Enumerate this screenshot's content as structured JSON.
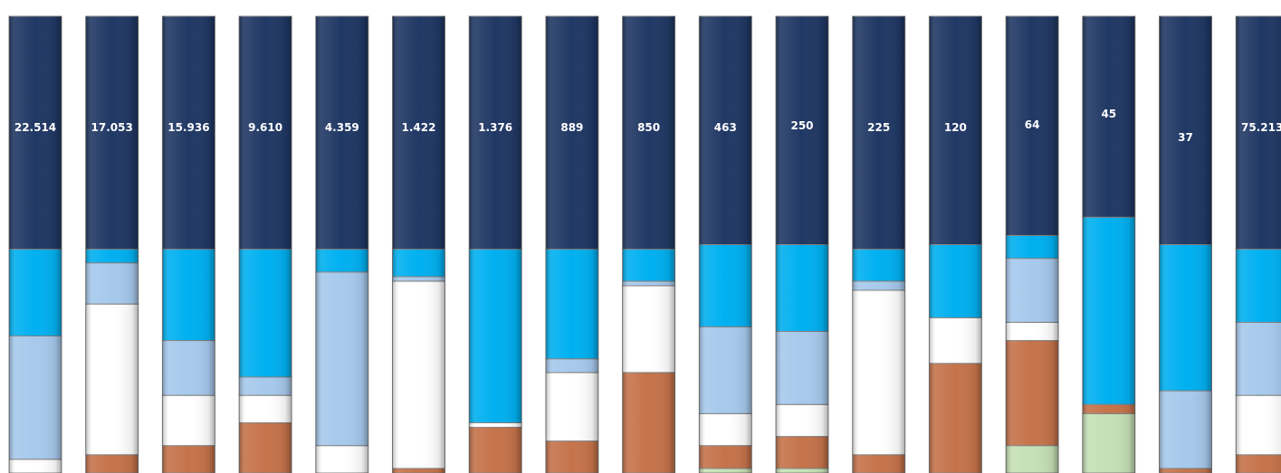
{
  "chart_data": {
    "type": "bar",
    "stacked": true,
    "normalized": true,
    "title": "",
    "xlabel": "",
    "ylabel": "",
    "ylim": [
      0,
      1
    ],
    "grid": false,
    "legend": "none",
    "segment_colors": [
      "#c5e0b4",
      "#c5734a",
      "#ffffff",
      "#a6c9ec",
      "#00b0f0",
      "#203864"
    ],
    "bars": [
      {
        "total_label": "22.514",
        "shares": [
          0,
          0,
          0.03,
          0.27,
          0.19,
          0.51
        ]
      },
      {
        "total_label": "17.053",
        "shares": [
          0,
          0.04,
          0.33,
          0.09,
          0.03,
          0.51
        ]
      },
      {
        "total_label": "15.936",
        "shares": [
          0,
          0.06,
          0.11,
          0.12,
          0.2,
          0.51
        ]
      },
      {
        "total_label": "9.610",
        "shares": [
          0,
          0.11,
          0.06,
          0.04,
          0.28,
          0.51
        ]
      },
      {
        "total_label": "4.359",
        "shares": [
          0,
          0,
          0.06,
          0.38,
          0.05,
          0.51
        ]
      },
      {
        "total_label": "1.422",
        "shares": [
          0,
          0.01,
          0.41,
          0.01,
          0.06,
          0.51
        ]
      },
      {
        "total_label": "1.376",
        "shares": [
          0,
          0.1,
          0.01,
          0,
          0.38,
          0.51
        ]
      },
      {
        "total_label": "889",
        "shares": [
          0,
          0.07,
          0.15,
          0.03,
          0.24,
          0.51
        ]
      },
      {
        "total_label": "850",
        "shares": [
          0,
          0.22,
          0.19,
          0.01,
          0.07,
          0.51
        ]
      },
      {
        "total_label": "463",
        "shares": [
          0.01,
          0.05,
          0.07,
          0.19,
          0.18,
          0.5
        ]
      },
      {
        "total_label": "250",
        "shares": [
          0.01,
          0.07,
          0.07,
          0.16,
          0.19,
          0.5
        ]
      },
      {
        "total_label": "225",
        "shares": [
          0,
          0.04,
          0.36,
          0.02,
          0.07,
          0.51
        ]
      },
      {
        "total_label": "120",
        "shares": [
          0,
          0.24,
          0.1,
          0,
          0.16,
          0.5
        ]
      },
      {
        "total_label": "64",
        "shares": [
          0.06,
          0.23,
          0.04,
          0.14,
          0.05,
          0.48
        ]
      },
      {
        "total_label": "45",
        "shares": [
          0.13,
          0.02,
          0,
          0,
          0.41,
          0.44
        ]
      },
      {
        "total_label": "37",
        "shares": [
          0,
          0.01,
          0,
          0.17,
          0.32,
          0.5
        ]
      },
      {
        "total_label": "75.213",
        "shares": [
          0,
          0.04,
          0.13,
          0.16,
          0.16,
          0.51
        ]
      }
    ]
  }
}
